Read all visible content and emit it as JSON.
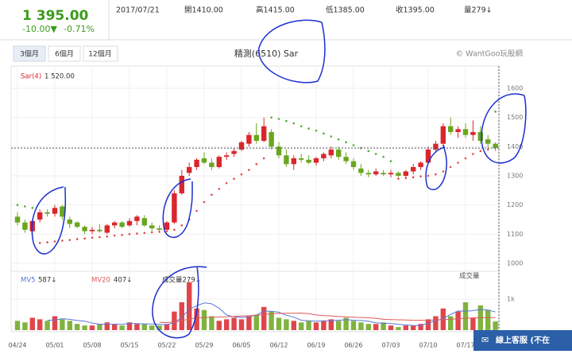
{
  "header": {
    "price": "1 395.00",
    "change": "-10.00▼",
    "change_pct": "-0.71%",
    "date": "2017/07/21",
    "open": "開1410.00",
    "high": "高1415.00",
    "low": "低1385.00",
    "close": "收1395.00",
    "volume": "量279↓"
  },
  "buttons": [
    "3個月",
    "6個月",
    "12個月"
  ],
  "copyright": "© WantGoo玩股網",
  "chat_button": "線上客服 (不在",
  "chart_data": {
    "type": "candlestick",
    "title": "精測(6510) Sar",
    "categories": [
      "04/24",
      null,
      null,
      null,
      null,
      "05/01",
      null,
      null,
      null,
      null,
      "05/08",
      null,
      null,
      null,
      null,
      "05/15",
      null,
      null,
      null,
      null,
      "05/22",
      null,
      null,
      null,
      null,
      "05/29",
      null,
      null,
      null,
      null,
      "06/05",
      null,
      null,
      null,
      null,
      "06/12",
      null,
      null,
      null,
      null,
      "06/19",
      null,
      null,
      null,
      null,
      "06/26",
      null,
      null,
      null,
      null,
      "07/03",
      null,
      null,
      null,
      null,
      "07/10",
      null,
      null,
      null,
      null,
      "07/17",
      null,
      null,
      null,
      null
    ],
    "open": [
      1160,
      1140,
      1110,
      1150,
      1175,
      1170,
      1195,
      1150,
      1140,
      1125,
      1110,
      1115,
      1105,
      1130,
      1140,
      1130,
      1145,
      1155,
      1130,
      1120,
      1115,
      1140,
      1240,
      1310,
      1330,
      1360,
      1345,
      1330,
      1365,
      1375,
      1390,
      1410,
      1440,
      1420,
      1450,
      1400,
      1370,
      1340,
      1360,
      1355,
      1345,
      1360,
      1370,
      1390,
      1365,
      1350,
      1325,
      1310,
      1305,
      1310,
      1305,
      1310,
      1300,
      1315,
      1330,
      1345,
      1390,
      1410,
      1470,
      1450,
      1460,
      1440,
      1450,
      1425,
      1410
    ],
    "high": [
      1175,
      1150,
      1150,
      1185,
      1185,
      1200,
      1200,
      1160,
      1145,
      1130,
      1125,
      1135,
      1135,
      1145,
      1145,
      1155,
      1165,
      1165,
      1140,
      1130,
      1145,
      1250,
      1320,
      1345,
      1360,
      1380,
      1360,
      1370,
      1380,
      1395,
      1420,
      1450,
      1480,
      1500,
      1460,
      1415,
      1390,
      1370,
      1375,
      1370,
      1365,
      1380,
      1400,
      1400,
      1380,
      1360,
      1340,
      1320,
      1325,
      1320,
      1320,
      1315,
      1320,
      1340,
      1350,
      1400,
      1420,
      1480,
      1500,
      1470,
      1480,
      1490,
      1470,
      1440,
      1415
    ],
    "low": [
      1130,
      1105,
      1095,
      1140,
      1160,
      1160,
      1150,
      1120,
      1120,
      1100,
      1100,
      1105,
      1100,
      1120,
      1120,
      1125,
      1130,
      1125,
      1110,
      1105,
      1110,
      1135,
      1235,
      1300,
      1320,
      1340,
      1320,
      1325,
      1355,
      1365,
      1385,
      1400,
      1410,
      1415,
      1390,
      1360,
      1330,
      1320,
      1345,
      1340,
      1335,
      1350,
      1360,
      1355,
      1340,
      1320,
      1300,
      1295,
      1300,
      1300,
      1295,
      1295,
      1295,
      1305,
      1320,
      1340,
      1380,
      1400,
      1440,
      1430,
      1430,
      1420,
      1410,
      1395,
      1385
    ],
    "close": [
      1140,
      1115,
      1145,
      1175,
      1170,
      1190,
      1160,
      1135,
      1125,
      1110,
      1115,
      1110,
      1130,
      1140,
      1125,
      1145,
      1160,
      1130,
      1120,
      1115,
      1140,
      1240,
      1300,
      1330,
      1355,
      1345,
      1330,
      1365,
      1370,
      1385,
      1415,
      1440,
      1420,
      1470,
      1400,
      1370,
      1340,
      1360,
      1355,
      1345,
      1360,
      1375,
      1390,
      1365,
      1350,
      1330,
      1310,
      1305,
      1315,
      1305,
      1310,
      1300,
      1315,
      1330,
      1345,
      1390,
      1410,
      1470,
      1450,
      1460,
      1440,
      1450,
      1420,
      1410,
      1395
    ],
    "up_color": "#d9262c",
    "down_color": "#6aa61e",
    "ylim": [
      970,
      1630
    ],
    "yticks": [
      1000,
      1100,
      1200,
      1300,
      1400,
      1500,
      1600
    ],
    "grid": true,
    "indicator": {
      "name": "Sar(4)",
      "last_label": "1 520.00",
      "up_color": "#e04a4a",
      "down_color": "#4caf30",
      "values": [
        1200,
        1195,
        1190,
        1070,
        1072,
        1075,
        1078,
        1080,
        1083,
        1085,
        1088,
        1090,
        1092,
        1095,
        1097,
        1100,
        1102,
        1104,
        1106,
        1108,
        1110,
        1115,
        1130,
        1150,
        1180,
        1210,
        1235,
        1255,
        1275,
        1290,
        1305,
        1320,
        1340,
        1360,
        1500,
        1495,
        1488,
        1480,
        1470,
        1462,
        1455,
        1445,
        1435,
        1425,
        1415,
        1405,
        1395,
        1385,
        1375,
        1365,
        1350,
        1290,
        1292,
        1295,
        1298,
        1300,
        1305,
        1315,
        1330,
        1345,
        1360,
        1375,
        1385,
        1390,
        1520
      ]
    },
    "volume": {
      "title": "成交量",
      "legend_label": "成交量279↓",
      "values": [
        300,
        250,
        400,
        350,
        300,
        450,
        350,
        300,
        200,
        150,
        150,
        200,
        250,
        200,
        150,
        250,
        200,
        200,
        150,
        150,
        200,
        600,
        900,
        1550,
        700,
        650,
        450,
        300,
        350,
        400,
        350,
        450,
        500,
        750,
        600,
        400,
        350,
        300,
        250,
        300,
        250,
        300,
        350,
        300,
        400,
        300,
        250,
        200,
        200,
        250,
        150,
        100,
        150,
        150,
        200,
        350,
        450,
        700,
        450,
        600,
        900,
        400,
        800,
        650,
        279
      ],
      "ylim": [
        0,
        1800
      ],
      "yticks": [
        {
          "value": 1000,
          "label": "1k"
        }
      ],
      "series": [
        {
          "name": "MV5",
          "color": "#5a78d8",
          "last_label": "587↓",
          "values": [
            null,
            null,
            null,
            null,
            320,
            330,
            370,
            350,
            310,
            290,
            230,
            190,
            190,
            190,
            190,
            210,
            210,
            200,
            200,
            190,
            170,
            250,
            400,
            680,
            790,
            880,
            850,
            710,
            490,
            430,
            410,
            430,
            490,
            610,
            610,
            580,
            480,
            420,
            320,
            300,
            290,
            300,
            300,
            320,
            340,
            320,
            310,
            290,
            240,
            220,
            210,
            190,
            170,
            150,
            150,
            220,
            300,
            370,
            510,
            620,
            610,
            630,
            670,
            650,
            587
          ]
        },
        {
          "name": "MV20",
          "color": "#e05a5a",
          "last_label": "407↓",
          "values": [
            null,
            null,
            null,
            null,
            null,
            null,
            null,
            null,
            null,
            null,
            null,
            null,
            null,
            null,
            null,
            null,
            null,
            null,
            null,
            250,
            245,
            265,
            300,
            365,
            390,
            410,
            420,
            425,
            430,
            445,
            455,
            465,
            480,
            510,
            530,
            540,
            545,
            545,
            550,
            535,
            490,
            470,
            460,
            445,
            430,
            420,
            410,
            400,
            380,
            350,
            340,
            335,
            330,
            320,
            320,
            320,
            330,
            340,
            350,
            370,
            385,
            395,
            400,
            405,
            407
          ]
        }
      ]
    }
  }
}
